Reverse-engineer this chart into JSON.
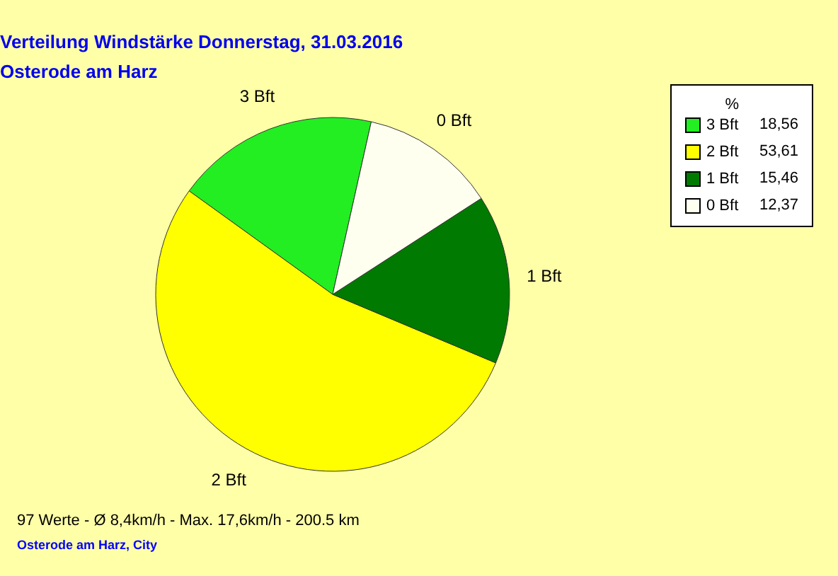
{
  "chart_data": {
    "type": "pie",
    "title": "Verteilung Windstärke  Donnerstag, 31.03.2016",
    "subtitle": "Osterode am Harz",
    "categories": [
      "3 Bft",
      "2 Bft",
      "1 Bft",
      "0 Bft"
    ],
    "values": [
      18.56,
      53.61,
      15.46,
      12.37
    ],
    "value_labels": [
      "18,56",
      "53,61",
      "15,46",
      "12,37"
    ],
    "colors": [
      "#22ee22",
      "#ffff00",
      "#007a00",
      "#fffff0"
    ],
    "legend_title": "%",
    "legend": "top right",
    "annotations": [
      "97 Werte   -   Ø 8,4km/h  -  Max. 17,6km/h   -   200.5 km",
      "Osterode am Harz, City"
    ]
  }
}
